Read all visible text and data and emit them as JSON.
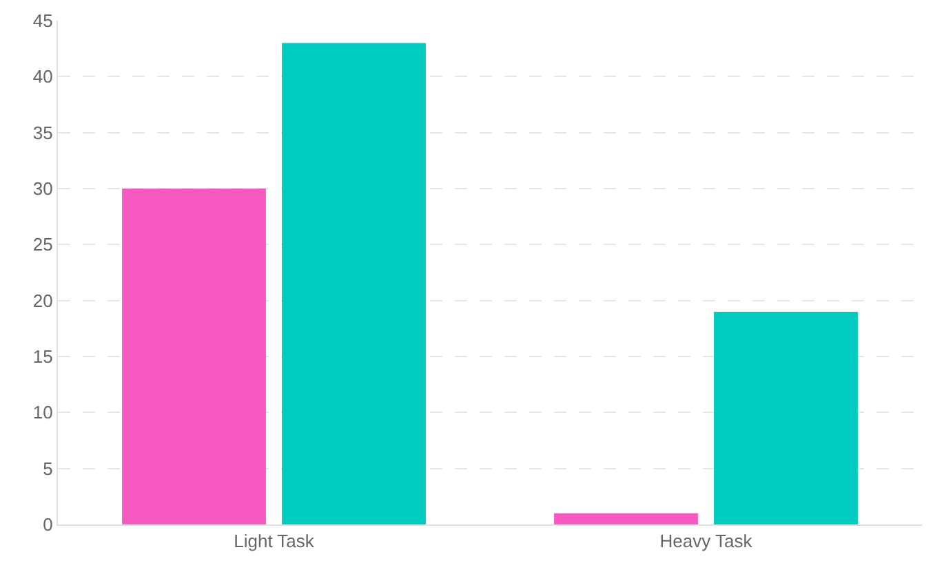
{
  "chart_data": {
    "type": "bar",
    "categories": [
      "Light Task",
      "Heavy Task"
    ],
    "series": [
      {
        "color": "#f659c0",
        "values": [
          30,
          1
        ]
      },
      {
        "color": "#00cbbf",
        "values": [
          43,
          19
        ]
      }
    ],
    "ylim": [
      0,
      45
    ],
    "yticks": [
      0,
      5,
      10,
      15,
      20,
      25,
      30,
      35,
      40,
      45
    ],
    "grid": "y"
  }
}
